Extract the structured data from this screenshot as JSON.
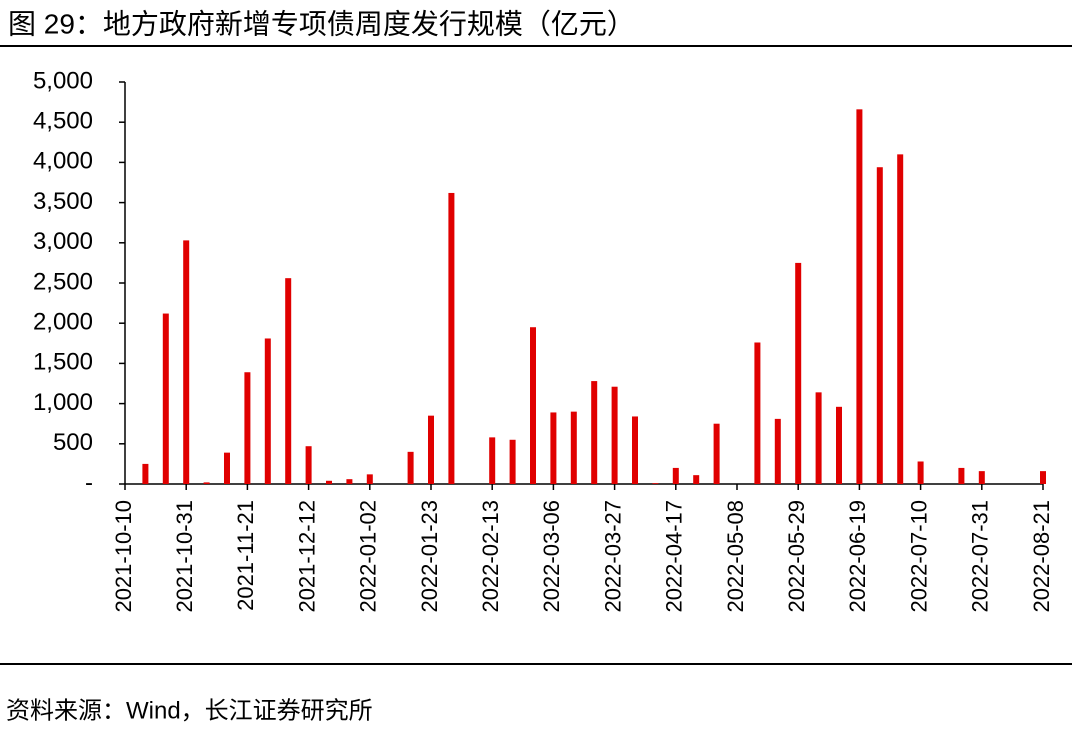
{
  "title": "图 29：地方政府新增专项债周度发行规模（亿元）",
  "source": "资料来源：Wind，长江证券研究所",
  "chart_data": {
    "type": "bar",
    "color": "#e00000",
    "categories": [
      "2021-10-10",
      null,
      null,
      "2021-10-31",
      null,
      null,
      "2021-11-21",
      null,
      null,
      "2021-12-12",
      null,
      null,
      "2022-01-02",
      null,
      null,
      "2022-01-23",
      null,
      null,
      "2022-02-13",
      null,
      null,
      "2022-03-06",
      null,
      null,
      "2022-03-27",
      null,
      null,
      "2022-04-17",
      null,
      null,
      "2022-05-08",
      null,
      null,
      "2022-05-29",
      null,
      null,
      "2022-06-19",
      null,
      null,
      "2022-07-10",
      null,
      null,
      "2022-07-31",
      null,
      null,
      "2022-08-21"
    ],
    "values": [
      0,
      250,
      2120,
      3030,
      20,
      390,
      1390,
      1810,
      2560,
      470,
      40,
      60,
      120,
      0,
      400,
      850,
      3620,
      0,
      580,
      550,
      1950,
      890,
      900,
      1280,
      1210,
      840,
      10,
      200,
      110,
      750,
      0,
      1760,
      810,
      2750,
      1140,
      960,
      4660,
      3940,
      4100,
      280,
      0,
      200,
      160,
      0,
      0,
      160
    ],
    "ylim": [
      0,
      5000
    ],
    "yticks": [
      {
        "value": 0,
        "label": "-"
      },
      500,
      {
        "value": 1000,
        "label": "1,000"
      },
      {
        "value": 1500,
        "label": "1,500"
      },
      {
        "value": 2000,
        "label": "2,000"
      },
      {
        "value": 2500,
        "label": "2,500"
      },
      {
        "value": 3000,
        "label": "3,000"
      },
      {
        "value": 3500,
        "label": "3,500"
      },
      {
        "value": 4000,
        "label": "4,000"
      },
      {
        "value": 4500,
        "label": "4,500"
      },
      {
        "value": 5000,
        "label": "5,000"
      }
    ]
  }
}
